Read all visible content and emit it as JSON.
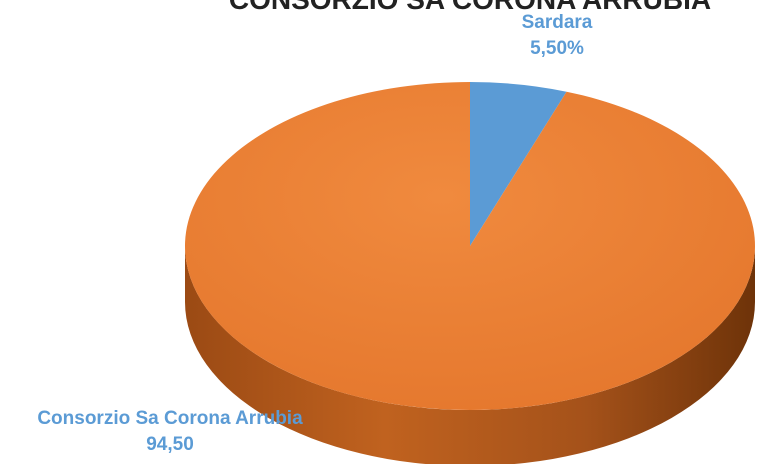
{
  "chart_data": {
    "type": "pie",
    "title": "CONSORZIO SA CORONA ARRUBIA",
    "slices": [
      {
        "label": "Sardara",
        "value": 5.5,
        "display": "5,50%",
        "color": "#5b9bd5"
      },
      {
        "label": "Consorzio Sa Corona Arrubia",
        "value": 94.5,
        "display": "94,50",
        "color": "#ed7d31"
      }
    ],
    "label_color": "#5b9bd5",
    "style": "3d"
  }
}
